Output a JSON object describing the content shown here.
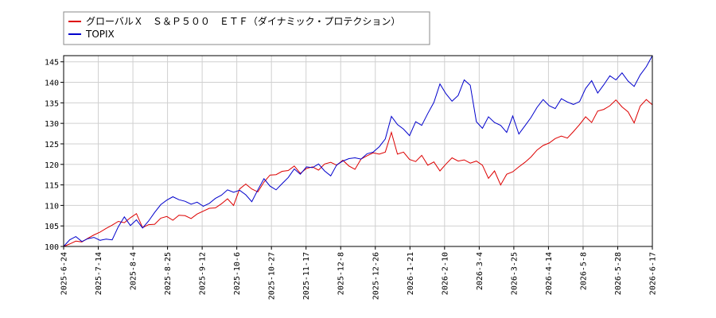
{
  "chart_data": {
    "type": "line",
    "title": "",
    "xlabel": "",
    "ylabel": "",
    "ylim": [
      100,
      146.5
    ],
    "yticks": [
      100,
      105,
      110,
      115,
      120,
      125,
      130,
      135,
      140,
      145
    ],
    "xticks": [
      "2025-6-24",
      "2025-7-14",
      "2025-8-4",
      "2025-8-25",
      "2025-9-12",
      "2025-10-6",
      "2025-10-27",
      "2025-11-17",
      "2025-12-8",
      "2025-12-26",
      "2026-1-21",
      "2026-2-10",
      "2026-3-4",
      "2026-3-25",
      "2026-4-14",
      "2026-5-8",
      "2026-5-28",
      "2026-6-17"
    ],
    "grid": true,
    "legend_position": "top-left",
    "series": [
      {
        "name": "グローバルＸ　Ｓ＆Ｐ５００　ＥＴＦ（ダイナミック・プロテクション）",
        "color": "#dd0000",
        "values": [
          100,
          100.6,
          101.3,
          101.1,
          102.0,
          102.8,
          103.5,
          104.4,
          105.2,
          106.1,
          105.8,
          107.0,
          108.0,
          104.6,
          105.3,
          105.4,
          106.9,
          107.3,
          106.4,
          107.6,
          107.5,
          106.8,
          107.9,
          108.6,
          109.3,
          109.4,
          110.4,
          111.6,
          110.0,
          114.0,
          115.2,
          114.0,
          113.3,
          115.7,
          117.4,
          117.5,
          118.3,
          118.5,
          119.6,
          117.8,
          119.0,
          119.4,
          118.6,
          120.1,
          120.5,
          119.8,
          121.0,
          119.6,
          118.8,
          121.3,
          122.1,
          122.8,
          122.5,
          123.0,
          127.8,
          122.5,
          123.0,
          121.2,
          120.7,
          122.2,
          119.8,
          120.6,
          118.4,
          120.1,
          121.6,
          120.8,
          121.1,
          120.3,
          120.8,
          119.8,
          116.6,
          118.4,
          115.0,
          117.6,
          118.2,
          119.4,
          120.5,
          121.8,
          123.5,
          124.6,
          125.2,
          126.3,
          126.9,
          126.4,
          128.0,
          129.7,
          131.6,
          130.2,
          133.0,
          133.4,
          134.3,
          135.7,
          134.0,
          132.8,
          130.1,
          134.2,
          135.8,
          134.5
        ]
      },
      {
        "name": "TOPIX",
        "color": "#0000cc",
        "values": [
          100,
          101.6,
          102.4,
          101.2,
          101.9,
          102.2,
          101.5,
          101.8,
          101.6,
          104.8,
          107.2,
          105.1,
          106.5,
          104.5,
          106.2,
          108.3,
          110.2,
          111.3,
          112.1,
          111.4,
          111.0,
          110.3,
          110.8,
          109.8,
          110.5,
          111.7,
          112.5,
          113.8,
          113.2,
          113.7,
          112.6,
          110.9,
          113.8,
          116.5,
          114.7,
          113.8,
          115.3,
          116.8,
          118.9,
          117.6,
          119.4,
          119.2,
          120.1,
          118.4,
          117.2,
          119.9,
          120.8,
          121.4,
          121.6,
          121.3,
          122.6,
          123.0,
          124.3,
          126.2,
          131.7,
          129.7,
          128.6,
          127.0,
          130.4,
          129.5,
          132.4,
          135.1,
          139.6,
          137.2,
          135.4,
          136.8,
          140.6,
          139.3,
          130.4,
          128.8,
          131.6,
          130.2,
          129.5,
          127.8,
          131.8,
          127.4,
          129.4,
          131.4,
          133.9,
          135.8,
          134.3,
          133.6,
          136.0,
          135.2,
          134.6,
          135.3,
          138.5,
          140.4,
          137.4,
          139.4,
          141.6,
          140.6,
          142.3,
          140.3,
          139.0,
          141.8,
          143.8,
          146.5
        ]
      }
    ]
  }
}
